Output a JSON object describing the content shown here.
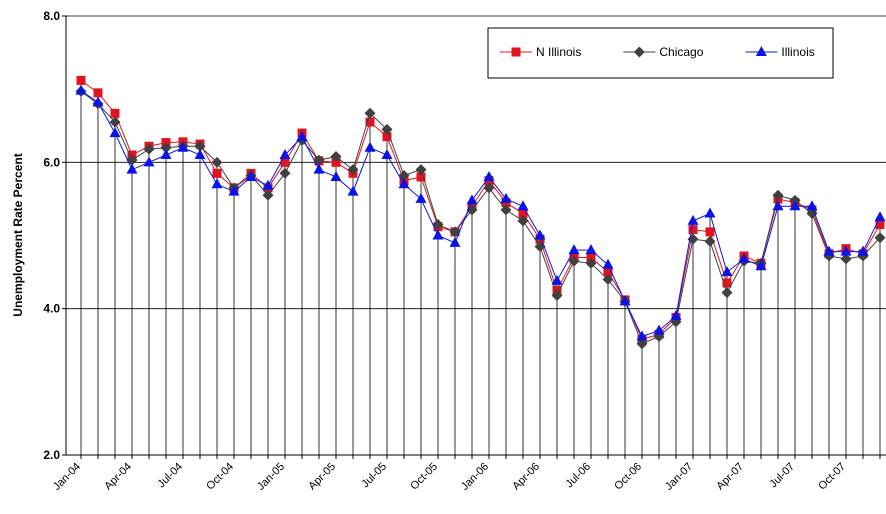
{
  "chart_data": {
    "type": "line",
    "y_label": "Unemployment Rate Percent",
    "categories": [
      "Jan-04",
      null,
      null,
      "Apr-04",
      null,
      null,
      "Jul-04",
      null,
      null,
      "Oct-04",
      null,
      null,
      "Jan-05",
      null,
      null,
      "Apr-05",
      null,
      null,
      "Jul-05",
      null,
      null,
      "Oct-05",
      null,
      null,
      "Jan-06",
      null,
      null,
      "Apr-06",
      null,
      null,
      "Jul-06",
      null,
      null,
      "Oct-06",
      null,
      null,
      "Jan-07",
      null,
      null,
      "Apr-07",
      null,
      null,
      "Jul-07",
      null,
      null,
      "Oct-07",
      null,
      null
    ],
    "series": [
      {
        "name": "N Illinois",
        "color": "#e0141e",
        "marker": "square",
        "values": [
          7.12,
          6.95,
          6.67,
          6.1,
          6.22,
          6.27,
          6.28,
          6.25,
          5.85,
          5.65,
          5.85,
          5.65,
          6.0,
          6.4,
          6.02,
          6.0,
          5.85,
          6.55,
          6.35,
          5.75,
          5.8,
          5.12,
          5.05,
          5.4,
          5.75,
          5.45,
          5.3,
          4.95,
          4.25,
          4.7,
          4.7,
          4.5,
          4.12,
          3.58,
          3.65,
          3.88,
          5.08,
          5.05,
          4.35,
          4.72,
          4.62,
          5.5,
          5.45,
          5.35,
          4.75,
          4.82,
          4.75,
          5.15
        ]
      },
      {
        "name": "Chicago",
        "color": "#404040",
        "marker": "diamond",
        "values": [
          6.97,
          6.8,
          6.55,
          6.03,
          6.18,
          6.2,
          6.22,
          6.22,
          6.0,
          5.65,
          5.82,
          5.55,
          5.85,
          6.3,
          6.03,
          6.08,
          5.9,
          6.67,
          6.45,
          5.82,
          5.9,
          5.15,
          5.05,
          5.35,
          5.65,
          5.35,
          5.2,
          4.85,
          4.18,
          4.65,
          4.62,
          4.4,
          4.1,
          3.52,
          3.62,
          3.82,
          4.95,
          4.92,
          4.22,
          4.65,
          4.62,
          5.55,
          5.48,
          5.3,
          4.72,
          4.68,
          4.72,
          4.97
        ]
      },
      {
        "name": "Illinois",
        "color": "#0a14e6",
        "marker": "triangle",
        "values": [
          6.98,
          6.82,
          6.4,
          5.9,
          6.0,
          6.1,
          6.2,
          6.1,
          5.7,
          5.6,
          5.8,
          5.68,
          6.1,
          6.35,
          5.9,
          5.8,
          5.6,
          6.2,
          6.1,
          5.7,
          5.5,
          5.0,
          4.9,
          5.48,
          5.8,
          5.5,
          5.4,
          5.0,
          4.38,
          4.8,
          4.8,
          4.6,
          4.1,
          3.62,
          3.7,
          3.9,
          5.2,
          5.3,
          4.5,
          4.68,
          4.58,
          5.4,
          5.4,
          5.4,
          4.78,
          4.78,
          4.78,
          5.25
        ]
      }
    ],
    "ylim": [
      2,
      8
    ],
    "yticks": [
      {
        "value": 2,
        "label": "2.0"
      },
      {
        "value": 4,
        "label": "4.0"
      },
      {
        "value": 6,
        "label": "6.0"
      },
      {
        "value": 8,
        "label": "8.0"
      }
    ],
    "grid": true,
    "drop_lines": true,
    "legend": "top-right"
  }
}
